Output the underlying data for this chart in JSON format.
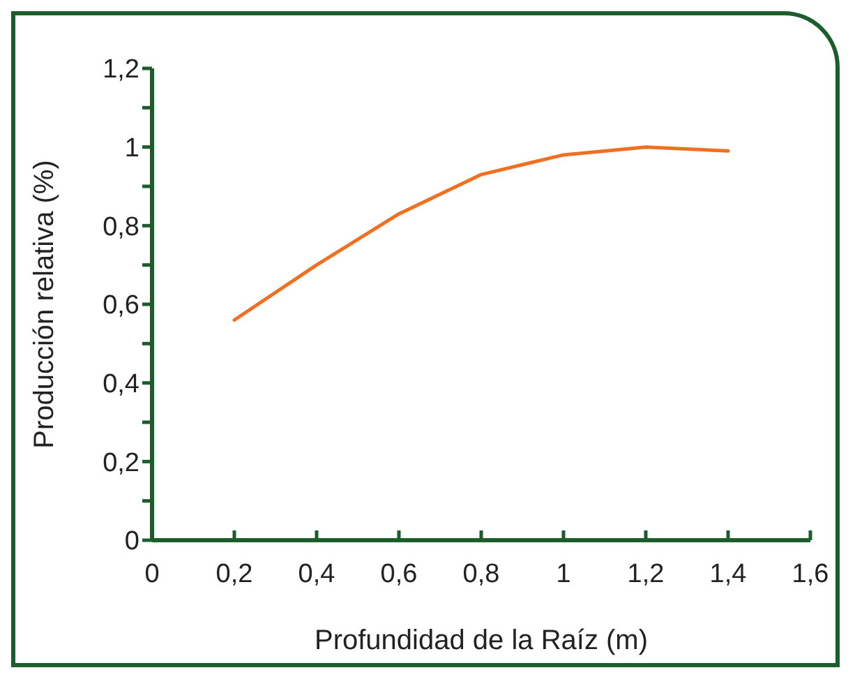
{
  "chart_data": {
    "type": "line",
    "xlabel": "Profundidad de la Raíz (m)",
    "ylabel": "Producción relativa (%)",
    "x": [
      0.2,
      0.4,
      0.6,
      0.8,
      1.0,
      1.2,
      1.4
    ],
    "series": [
      {
        "color": "#f07022",
        "values": [
          0.56,
          0.7,
          0.83,
          0.93,
          0.98,
          1.0,
          0.99
        ]
      }
    ],
    "xlim": [
      0,
      1.6
    ],
    "xticks": [
      {
        "value": 0,
        "label": "0"
      },
      {
        "value": 0.2,
        "label": "0,2"
      },
      {
        "value": 0.4,
        "label": "0,4"
      },
      {
        "value": 0.6,
        "label": "0,6"
      },
      {
        "value": 0.8,
        "label": "0,8"
      },
      {
        "value": 1,
        "label": "1"
      },
      {
        "value": 1.2,
        "label": "1,2"
      },
      {
        "value": 1.4,
        "label": "1,4"
      },
      {
        "value": 1.6,
        "label": "1,6"
      }
    ],
    "ylim": [
      0,
      1.2
    ],
    "yticks": [
      {
        "value": 0,
        "label": "0"
      },
      {
        "value": 0.1,
        "label": null
      },
      {
        "value": 0.2,
        "label": "0,2"
      },
      {
        "value": 0.3,
        "label": null
      },
      {
        "value": 0.4,
        "label": "0,4"
      },
      {
        "value": 0.5,
        "label": null
      },
      {
        "value": 0.6,
        "label": "0,6"
      },
      {
        "value": 0.7,
        "label": null
      },
      {
        "value": 0.8,
        "label": "0,8"
      },
      {
        "value": 0.9,
        "label": null
      },
      {
        "value": 1,
        "label": "1"
      },
      {
        "value": 1.1,
        "label": null
      },
      {
        "value": 1.2,
        "label": "1,2"
      }
    ],
    "marker": "none",
    "line_style": "solid"
  }
}
